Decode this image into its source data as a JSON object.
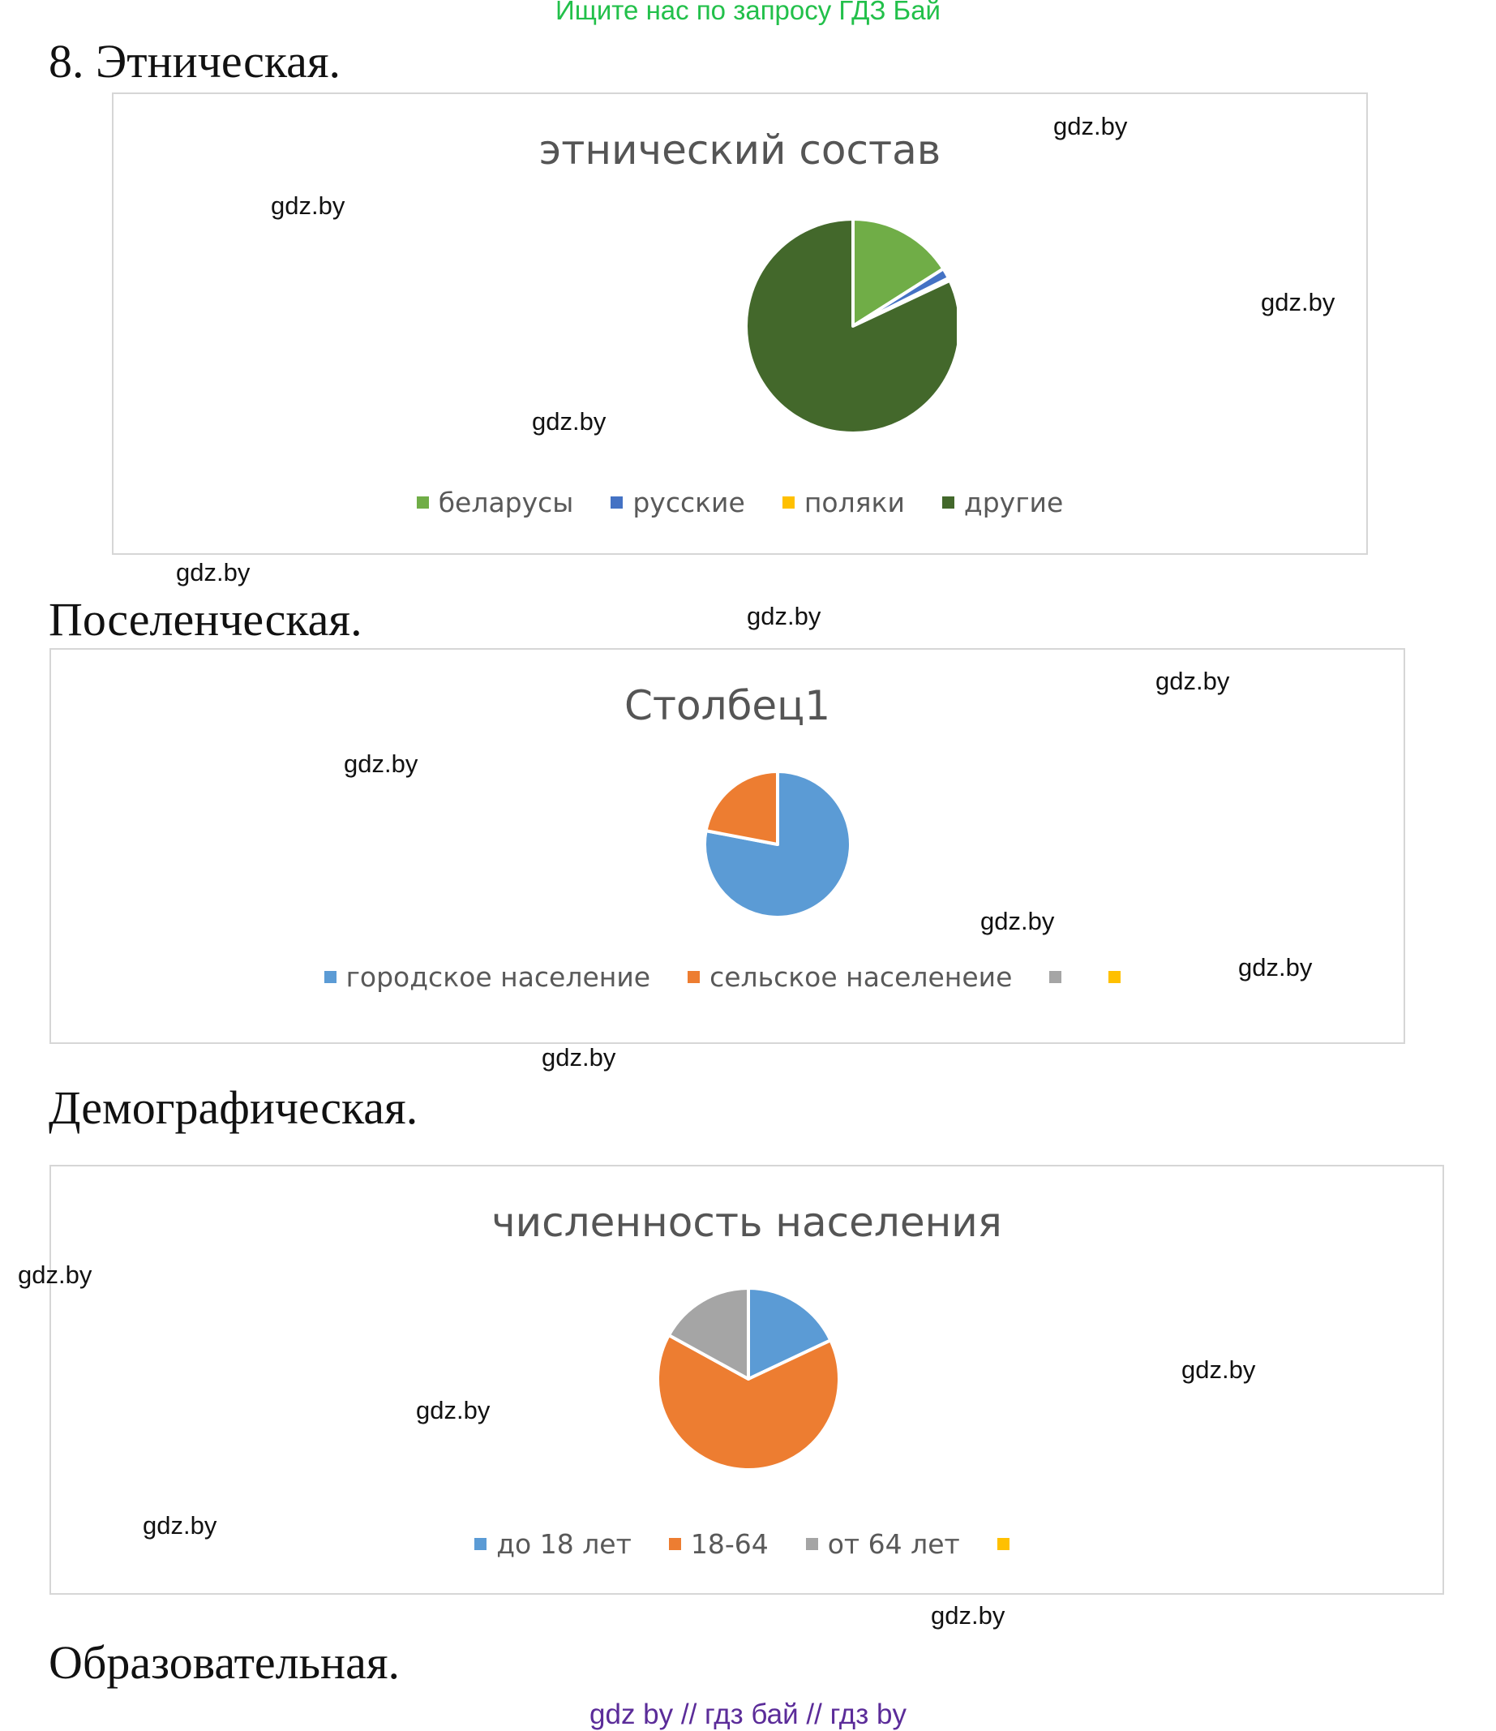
{
  "banner": "Ищите нас по запросу ГДЗ Бай",
  "headings": {
    "ethnic": "8.  Этническая.",
    "settlement": "Поселенческая.",
    "demographic": "Демографическая.",
    "education": "Образовательная."
  },
  "watermark": "gdz.by",
  "footer": "gdz by  //  гдз бай  //  гдз by",
  "chart_data": [
    {
      "type": "pie",
      "title": "этнический состав",
      "legend_position": "bottom",
      "categories": [
        "беларусы",
        "русские",
        "поляки",
        "другие"
      ],
      "values": [
        16.0,
        1.6,
        0.4,
        82.0
      ],
      "colors": [
        "#70ad47",
        "#4472c4",
        "#ffc000",
        "#43682b"
      ]
    },
    {
      "type": "pie",
      "title": "Столбец1",
      "legend_position": "bottom",
      "categories": [
        "городское население",
        "сельское населенеие",
        "",
        ""
      ],
      "values": [
        78,
        22,
        0,
        0
      ],
      "colors": [
        "#5b9bd5",
        "#ed7d31",
        "#a5a5a5",
        "#ffc000"
      ]
    },
    {
      "type": "pie",
      "title": "численность населения",
      "legend_position": "bottom",
      "categories": [
        "до 18 лет",
        "18-64",
        "от 64 лет",
        ""
      ],
      "values": [
        18,
        65,
        17,
        0
      ],
      "colors": [
        "#5b9bd5",
        "#ed7d31",
        "#a5a5a5",
        "#ffc000"
      ]
    }
  ]
}
